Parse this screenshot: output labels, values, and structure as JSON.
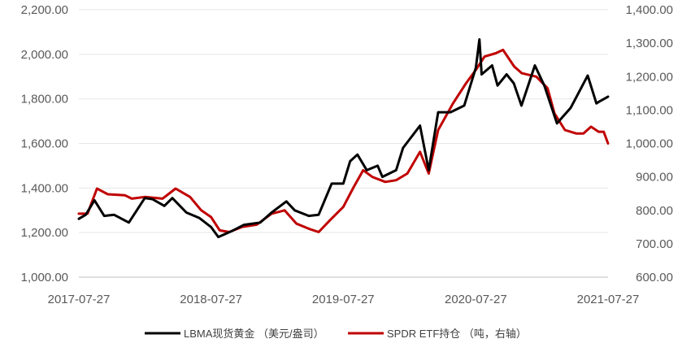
{
  "chart_data": {
    "type": "line",
    "dual_axis": true,
    "grid": "horizontal",
    "legend_position": "bottom",
    "x_tick_labels": [
      "2017-07-27",
      "2018-07-27",
      "2019-07-27",
      "2020-07-27",
      "2021-07-27"
    ],
    "y_left_ticks": [
      "1,000.00",
      "1,200.00",
      "1,400.00",
      "1,600.00",
      "1,800.00",
      "2,000.00",
      "2,200.00"
    ],
    "y_right_ticks": [
      "600.00",
      "700.00",
      "800.00",
      "900.00",
      "1,000.00",
      "1,100.00",
      "1,200.00",
      "1,300.00",
      "1,400.00"
    ],
    "y_left_range": [
      1000,
      2200
    ],
    "y_right_range": [
      600,
      1400
    ],
    "x_range": [
      "2017-07-27",
      "2021-07-27"
    ],
    "series": [
      {
        "name": "LBMA现货黄金 （美元/盎司）",
        "axis": "left",
        "color": "#000000",
        "points": [
          [
            "2017-07-27",
            1262
          ],
          [
            "2017-08-15",
            1280
          ],
          [
            "2017-09-08",
            1345
          ],
          [
            "2017-10-05",
            1275
          ],
          [
            "2017-11-01",
            1280
          ],
          [
            "2017-12-12",
            1245
          ],
          [
            "2018-01-25",
            1355
          ],
          [
            "2018-02-15",
            1350
          ],
          [
            "2018-03-20",
            1320
          ],
          [
            "2018-04-11",
            1355
          ],
          [
            "2018-05-20",
            1290
          ],
          [
            "2018-06-25",
            1265
          ],
          [
            "2018-07-27",
            1225
          ],
          [
            "2018-08-16",
            1180
          ],
          [
            "2018-09-20",
            1205
          ],
          [
            "2018-10-26",
            1235
          ],
          [
            "2018-12-10",
            1245
          ],
          [
            "2019-01-10",
            1290
          ],
          [
            "2019-02-20",
            1340
          ],
          [
            "2019-03-15",
            1300
          ],
          [
            "2019-04-23",
            1275
          ],
          [
            "2019-05-20",
            1280
          ],
          [
            "2019-06-25",
            1420
          ],
          [
            "2019-07-27",
            1420
          ],
          [
            "2019-08-15",
            1520
          ],
          [
            "2019-09-04",
            1550
          ],
          [
            "2019-09-30",
            1480
          ],
          [
            "2019-10-30",
            1500
          ],
          [
            "2019-11-12",
            1450
          ],
          [
            "2019-12-20",
            1480
          ],
          [
            "2020-01-08",
            1580
          ],
          [
            "2020-02-24",
            1680
          ],
          [
            "2020-03-19",
            1480
          ],
          [
            "2020-04-14",
            1740
          ],
          [
            "2020-05-18",
            1740
          ],
          [
            "2020-06-25",
            1770
          ],
          [
            "2020-07-27",
            1940
          ],
          [
            "2020-08-06",
            2067
          ],
          [
            "2020-08-12",
            1910
          ],
          [
            "2020-09-10",
            1950
          ],
          [
            "2020-09-25",
            1860
          ],
          [
            "2020-10-20",
            1910
          ],
          [
            "2020-11-09",
            1870
          ],
          [
            "2020-11-30",
            1770
          ],
          [
            "2021-01-06",
            1950
          ],
          [
            "2021-02-01",
            1860
          ],
          [
            "2021-03-08",
            1690
          ],
          [
            "2021-04-15",
            1760
          ],
          [
            "2021-06-01",
            1905
          ],
          [
            "2021-06-25",
            1780
          ],
          [
            "2021-07-05",
            1790
          ],
          [
            "2021-07-27",
            1810
          ]
        ]
      },
      {
        "name": "SPDR ETF持仓 （吨，右轴）",
        "axis": "right",
        "color": "#c00000",
        "points": [
          [
            "2017-07-27",
            790
          ],
          [
            "2017-08-20",
            790
          ],
          [
            "2017-09-15",
            865
          ],
          [
            "2017-10-15",
            848
          ],
          [
            "2017-12-01",
            845
          ],
          [
            "2017-12-20",
            835
          ],
          [
            "2018-01-25",
            840
          ],
          [
            "2018-03-15",
            835
          ],
          [
            "2018-04-20",
            865
          ],
          [
            "2018-05-30",
            840
          ],
          [
            "2018-06-30",
            800
          ],
          [
            "2018-07-27",
            780
          ],
          [
            "2018-08-20",
            740
          ],
          [
            "2018-09-15",
            735
          ],
          [
            "2018-10-20",
            750
          ],
          [
            "2018-11-30",
            757
          ],
          [
            "2019-01-10",
            790
          ],
          [
            "2019-02-15",
            800
          ],
          [
            "2019-03-20",
            760
          ],
          [
            "2019-04-23",
            745
          ],
          [
            "2019-05-20",
            735
          ],
          [
            "2019-06-20",
            770
          ],
          [
            "2019-07-27",
            810
          ],
          [
            "2019-08-25",
            870
          ],
          [
            "2019-09-20",
            920
          ],
          [
            "2019-10-15",
            900
          ],
          [
            "2019-11-20",
            885
          ],
          [
            "2019-12-20",
            890
          ],
          [
            "2020-01-20",
            910
          ],
          [
            "2020-02-24",
            975
          ],
          [
            "2020-03-19",
            910
          ],
          [
            "2020-04-14",
            1040
          ],
          [
            "2020-05-25",
            1120
          ],
          [
            "2020-06-30",
            1180
          ],
          [
            "2020-07-27",
            1220
          ],
          [
            "2020-08-20",
            1260
          ],
          [
            "2020-09-20",
            1270
          ],
          [
            "2020-10-10",
            1280
          ],
          [
            "2020-11-10",
            1230
          ],
          [
            "2020-12-01",
            1210
          ],
          [
            "2021-01-10",
            1200
          ],
          [
            "2021-02-10",
            1165
          ],
          [
            "2021-03-01",
            1090
          ],
          [
            "2021-03-30",
            1040
          ],
          [
            "2021-04-30",
            1030
          ],
          [
            "2021-05-20",
            1030
          ],
          [
            "2021-06-10",
            1050
          ],
          [
            "2021-07-01",
            1035
          ],
          [
            "2021-07-15",
            1035
          ],
          [
            "2021-07-27",
            1000
          ]
        ]
      }
    ]
  }
}
